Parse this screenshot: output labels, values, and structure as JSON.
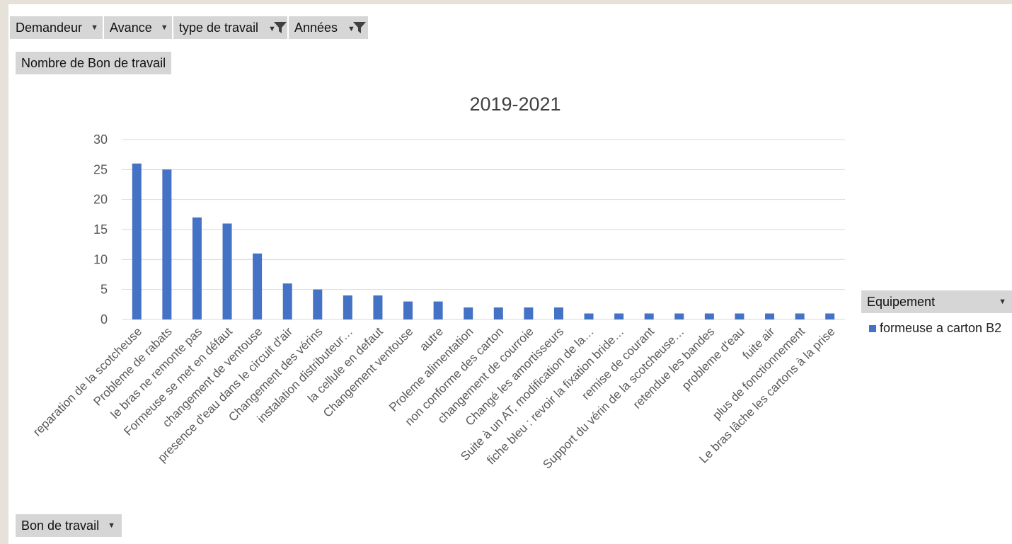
{
  "filters": [
    {
      "label": "Demandeur",
      "icon": "dropdown-arrow-icon"
    },
    {
      "label": "Avance",
      "icon": "dropdown-arrow-icon"
    },
    {
      "label": "type de travail",
      "icon": "filter-funnel-icon"
    },
    {
      "label": "Années",
      "icon": "filter-funnel-icon"
    }
  ],
  "value_field": "Nombre de Bon de travail",
  "axis_field": "Bon de travail",
  "legend_field": "Equipement",
  "colors": {
    "bar": "#4472c4",
    "grid": "#d9d9d9",
    "axis_text": "#595959"
  },
  "chart_data": {
    "type": "bar",
    "title": "2019-2021",
    "xlabel": "",
    "ylabel": "",
    "ylim": [
      0,
      30
    ],
    "yticks": [
      0,
      5,
      10,
      15,
      20,
      25,
      30
    ],
    "grid": true,
    "legend_position": "right",
    "categories": [
      "reparation de la scotcheuse",
      "Probleme de rabats",
      "le bras ne remonte pas",
      "Formeuse se met en défaut",
      "changement de ventouse",
      "presence d'eau dans le circuit d'air",
      "Changement des vérins",
      "instalation distributeur…",
      "la cellule en defaut",
      "Changement ventouse",
      "autre",
      "Proleme alimentation",
      "non conforme des carton",
      "changement de courroie",
      "Changé les amortisseurs",
      "Suite à un AT, modification de la…",
      "fiche bleu : revoir la fixation bride…",
      "remise de courant",
      "Support du vérin de la scotcheuse…",
      "retendue les bandes",
      "probleme d'eau",
      "fuite air",
      "plus de fonctionnement",
      "Le bras lâche les cartons à la prise"
    ],
    "series": [
      {
        "name": "formeuse a carton B2",
        "values": [
          26,
          25,
          17,
          16,
          11,
          6,
          5,
          4,
          4,
          3,
          3,
          2,
          2,
          2,
          2,
          1,
          1,
          1,
          1,
          1,
          1,
          1,
          1,
          1
        ]
      }
    ]
  }
}
